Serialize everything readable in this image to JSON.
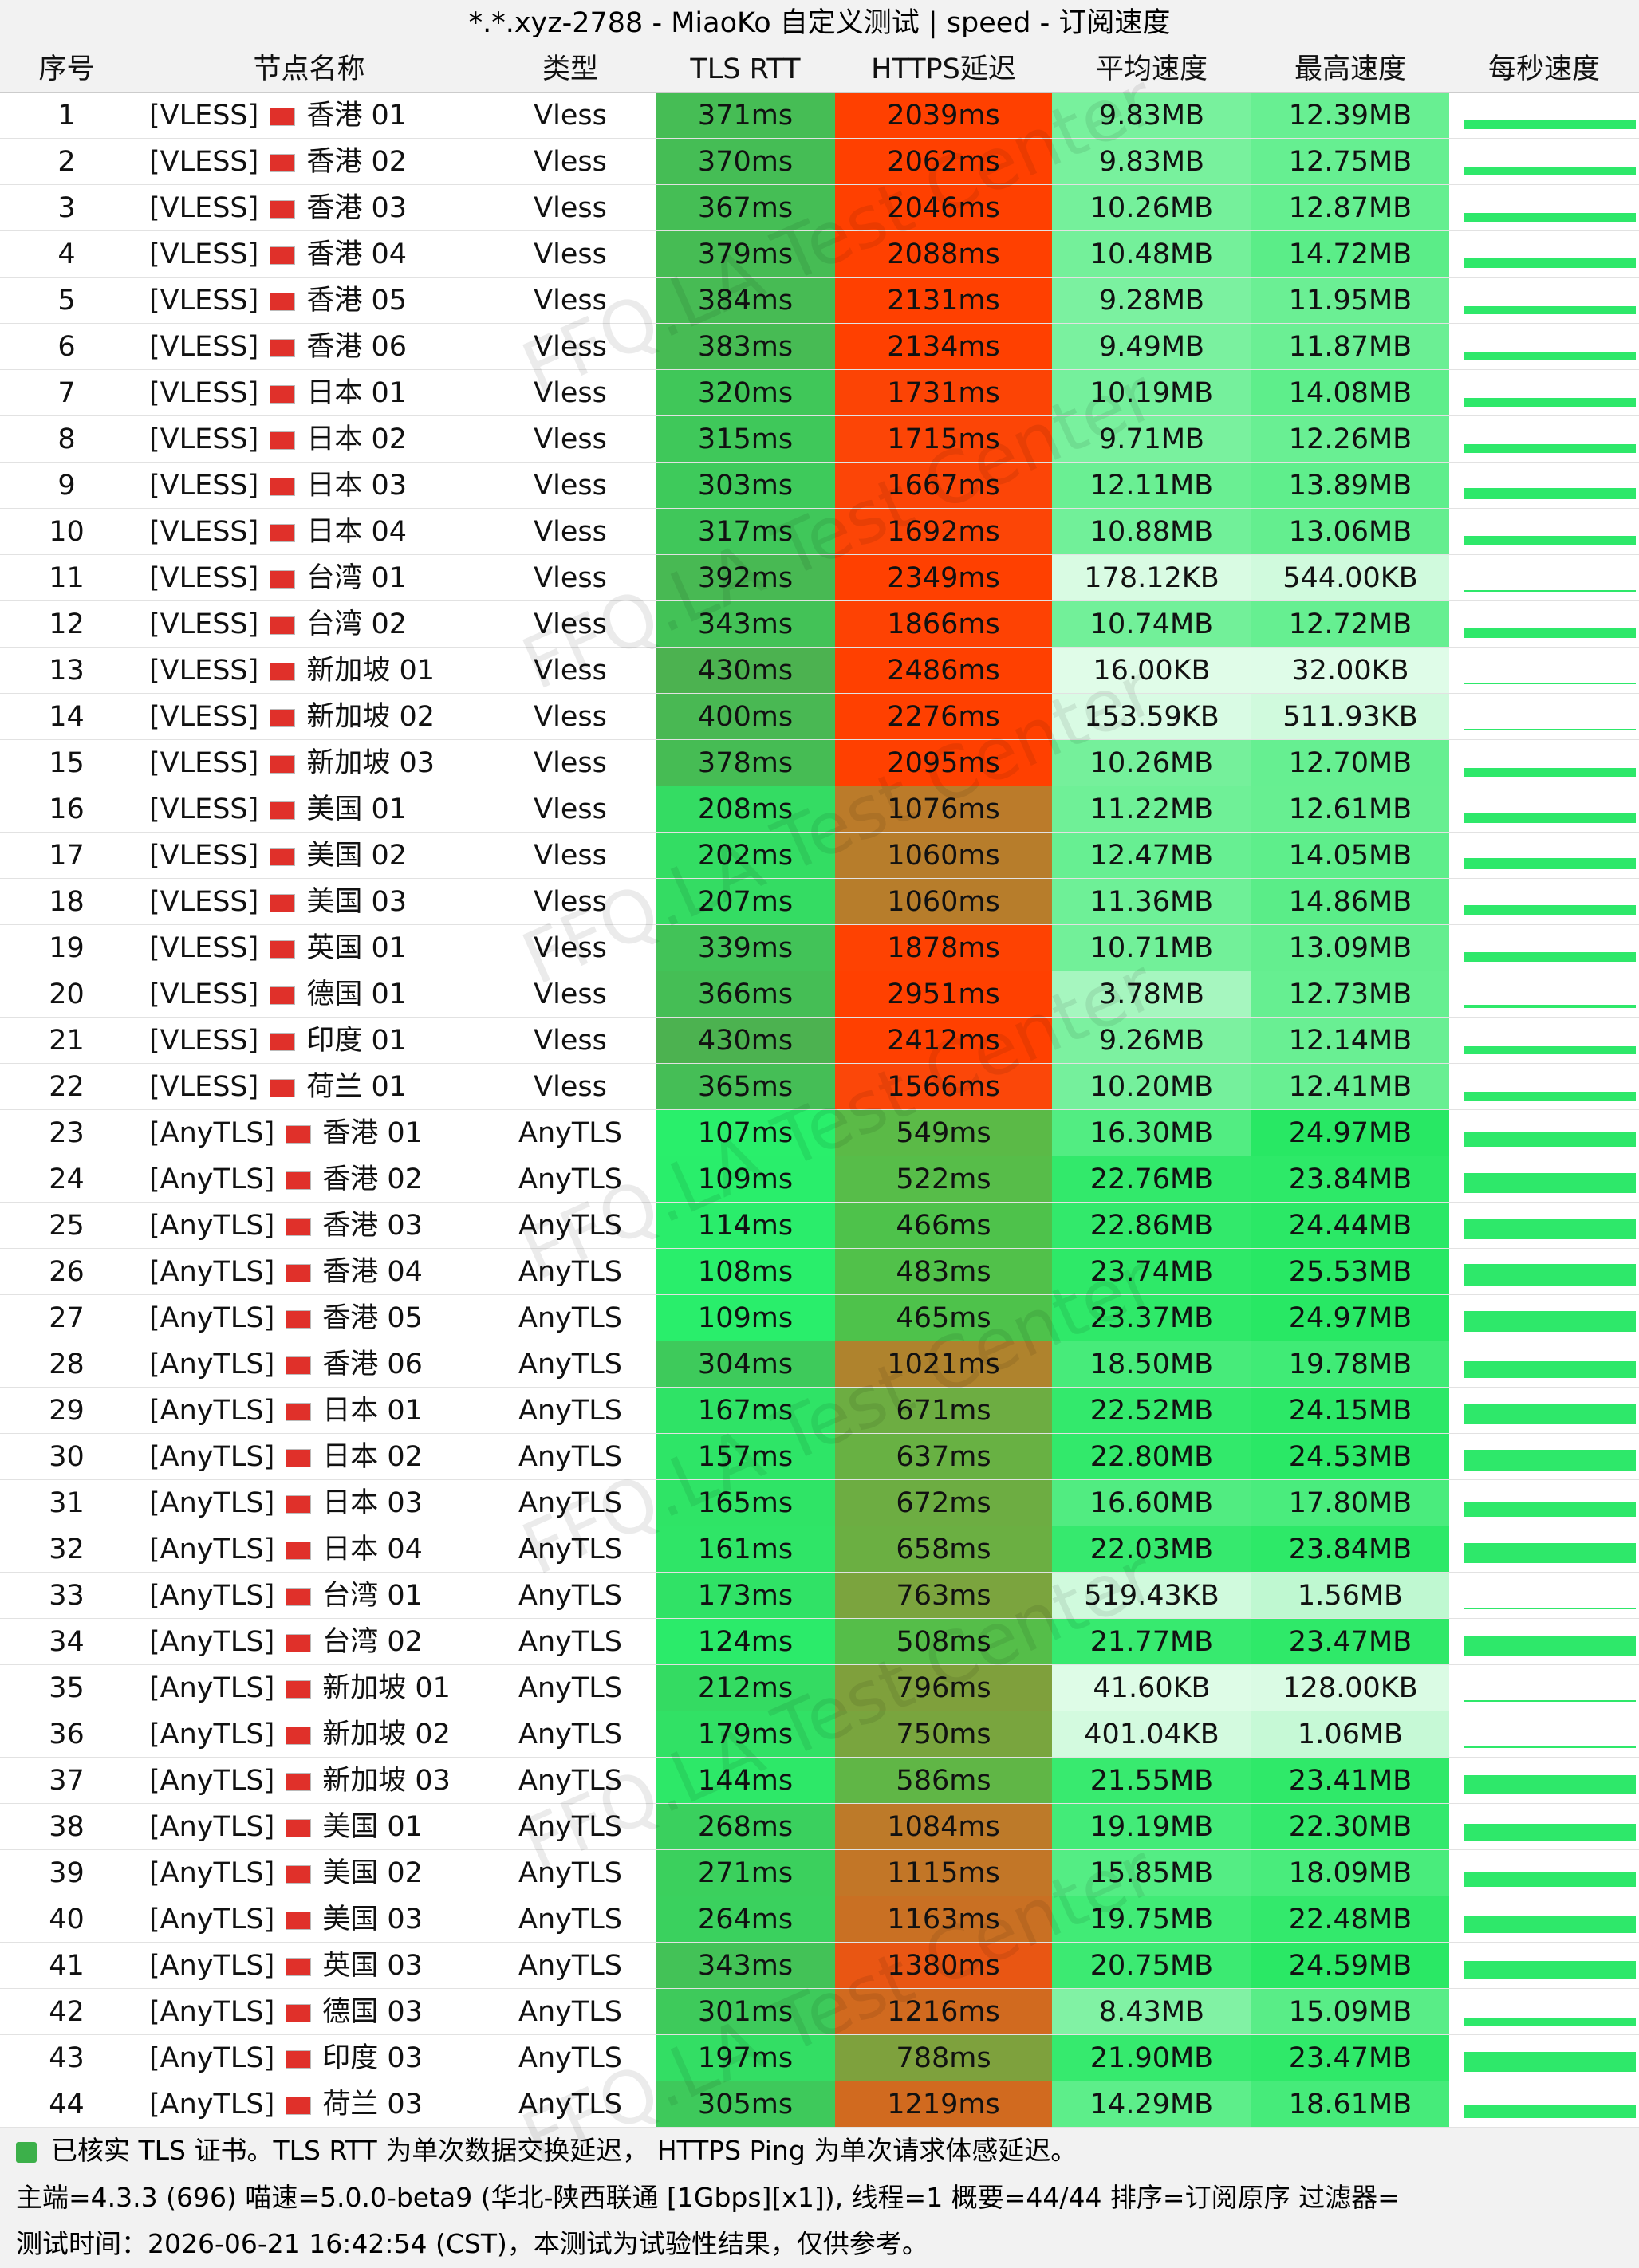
{
  "title": "*.*.xyz-2788 - MiaoKo 自定义测试 | speed - 订阅速度",
  "watermark": "FFQ.LA Test Center",
  "columns": [
    "序号",
    "节点名称",
    "类型",
    "TLS RTT",
    "HTTPS延迟",
    "平均速度",
    "最高速度",
    "每秒速度"
  ],
  "rows": [
    [
      1,
      "[VLESS]",
      "香港 01",
      "Vless",
      "371ms",
      "2039ms",
      "9.83MB",
      "12.39MB"
    ],
    [
      2,
      "[VLESS]",
      "香港 02",
      "Vless",
      "370ms",
      "2062ms",
      "9.83MB",
      "12.75MB"
    ],
    [
      3,
      "[VLESS]",
      "香港 03",
      "Vless",
      "367ms",
      "2046ms",
      "10.26MB",
      "12.87MB"
    ],
    [
      4,
      "[VLESS]",
      "香港 04",
      "Vless",
      "379ms",
      "2088ms",
      "10.48MB",
      "14.72MB"
    ],
    [
      5,
      "[VLESS]",
      "香港 05",
      "Vless",
      "384ms",
      "2131ms",
      "9.28MB",
      "11.95MB"
    ],
    [
      6,
      "[VLESS]",
      "香港 06",
      "Vless",
      "383ms",
      "2134ms",
      "9.49MB",
      "11.87MB"
    ],
    [
      7,
      "[VLESS]",
      "日本 01",
      "Vless",
      "320ms",
      "1731ms",
      "10.19MB",
      "14.08MB"
    ],
    [
      8,
      "[VLESS]",
      "日本 02",
      "Vless",
      "315ms",
      "1715ms",
      "9.71MB",
      "12.26MB"
    ],
    [
      9,
      "[VLESS]",
      "日本 03",
      "Vless",
      "303ms",
      "1667ms",
      "12.11MB",
      "13.89MB"
    ],
    [
      10,
      "[VLESS]",
      "日本 04",
      "Vless",
      "317ms",
      "1692ms",
      "10.88MB",
      "13.06MB"
    ],
    [
      11,
      "[VLESS]",
      "台湾 01",
      "Vless",
      "392ms",
      "2349ms",
      "178.12KB",
      "544.00KB"
    ],
    [
      12,
      "[VLESS]",
      "台湾 02",
      "Vless",
      "343ms",
      "1866ms",
      "10.74MB",
      "12.72MB"
    ],
    [
      13,
      "[VLESS]",
      "新加坡 01",
      "Vless",
      "430ms",
      "2486ms",
      "16.00KB",
      "32.00KB"
    ],
    [
      14,
      "[VLESS]",
      "新加坡 02",
      "Vless",
      "400ms",
      "2276ms",
      "153.59KB",
      "511.93KB"
    ],
    [
      15,
      "[VLESS]",
      "新加坡 03",
      "Vless",
      "378ms",
      "2095ms",
      "10.26MB",
      "12.70MB"
    ],
    [
      16,
      "[VLESS]",
      "美国 01",
      "Vless",
      "208ms",
      "1076ms",
      "11.22MB",
      "12.61MB"
    ],
    [
      17,
      "[VLESS]",
      "美国 02",
      "Vless",
      "202ms",
      "1060ms",
      "12.47MB",
      "14.05MB"
    ],
    [
      18,
      "[VLESS]",
      "美国 03",
      "Vless",
      "207ms",
      "1060ms",
      "11.36MB",
      "14.86MB"
    ],
    [
      19,
      "[VLESS]",
      "英国 01",
      "Vless",
      "339ms",
      "1878ms",
      "10.71MB",
      "13.09MB"
    ],
    [
      20,
      "[VLESS]",
      "德国 01",
      "Vless",
      "366ms",
      "2951ms",
      "3.78MB",
      "12.73MB"
    ],
    [
      21,
      "[VLESS]",
      "印度 01",
      "Vless",
      "430ms",
      "2412ms",
      "9.26MB",
      "12.14MB"
    ],
    [
      22,
      "[VLESS]",
      "荷兰 01",
      "Vless",
      "365ms",
      "1566ms",
      "10.20MB",
      "12.41MB"
    ],
    [
      23,
      "[AnyTLS]",
      "香港 01",
      "AnyTLS",
      "107ms",
      "549ms",
      "16.30MB",
      "24.97MB"
    ],
    [
      24,
      "[AnyTLS]",
      "香港 02",
      "AnyTLS",
      "109ms",
      "522ms",
      "22.76MB",
      "23.84MB"
    ],
    [
      25,
      "[AnyTLS]",
      "香港 03",
      "AnyTLS",
      "114ms",
      "466ms",
      "22.86MB",
      "24.44MB"
    ],
    [
      26,
      "[AnyTLS]",
      "香港 04",
      "AnyTLS",
      "108ms",
      "483ms",
      "23.74MB",
      "25.53MB"
    ],
    [
      27,
      "[AnyTLS]",
      "香港 05",
      "AnyTLS",
      "109ms",
      "465ms",
      "23.37MB",
      "24.97MB"
    ],
    [
      28,
      "[AnyTLS]",
      "香港 06",
      "AnyTLS",
      "304ms",
      "1021ms",
      "18.50MB",
      "19.78MB"
    ],
    [
      29,
      "[AnyTLS]",
      "日本 01",
      "AnyTLS",
      "167ms",
      "671ms",
      "22.52MB",
      "24.15MB"
    ],
    [
      30,
      "[AnyTLS]",
      "日本 02",
      "AnyTLS",
      "157ms",
      "637ms",
      "22.80MB",
      "24.53MB"
    ],
    [
      31,
      "[AnyTLS]",
      "日本 03",
      "AnyTLS",
      "165ms",
      "672ms",
      "16.60MB",
      "17.80MB"
    ],
    [
      32,
      "[AnyTLS]",
      "日本 04",
      "AnyTLS",
      "161ms",
      "658ms",
      "22.03MB",
      "23.84MB"
    ],
    [
      33,
      "[AnyTLS]",
      "台湾 01",
      "AnyTLS",
      "173ms",
      "763ms",
      "519.43KB",
      "1.56MB"
    ],
    [
      34,
      "[AnyTLS]",
      "台湾 02",
      "AnyTLS",
      "124ms",
      "508ms",
      "21.77MB",
      "23.47MB"
    ],
    [
      35,
      "[AnyTLS]",
      "新加坡 01",
      "AnyTLS",
      "212ms",
      "796ms",
      "41.60KB",
      "128.00KB"
    ],
    [
      36,
      "[AnyTLS]",
      "新加坡 02",
      "AnyTLS",
      "179ms",
      "750ms",
      "401.04KB",
      "1.06MB"
    ],
    [
      37,
      "[AnyTLS]",
      "新加坡 03",
      "AnyTLS",
      "144ms",
      "586ms",
      "21.55MB",
      "23.41MB"
    ],
    [
      38,
      "[AnyTLS]",
      "美国 01",
      "AnyTLS",
      "268ms",
      "1084ms",
      "19.19MB",
      "22.30MB"
    ],
    [
      39,
      "[AnyTLS]",
      "美国 02",
      "AnyTLS",
      "271ms",
      "1115ms",
      "15.85MB",
      "18.09MB"
    ],
    [
      40,
      "[AnyTLS]",
      "美国 03",
      "AnyTLS",
      "264ms",
      "1163ms",
      "19.75MB",
      "22.48MB"
    ],
    [
      41,
      "[AnyTLS]",
      "英国 03",
      "AnyTLS",
      "343ms",
      "1380ms",
      "20.75MB",
      "24.59MB"
    ],
    [
      42,
      "[AnyTLS]",
      "德国 03",
      "AnyTLS",
      "301ms",
      "1216ms",
      "8.43MB",
      "15.09MB"
    ],
    [
      43,
      "[AnyTLS]",
      "印度 03",
      "AnyTLS",
      "197ms",
      "788ms",
      "21.90MB",
      "23.47MB"
    ],
    [
      44,
      "[AnyTLS]",
      "荷兰 03",
      "AnyTLS",
      "305ms",
      "1219ms",
      "14.29MB",
      "18.61MB"
    ]
  ],
  "footer": [
    "已核实 TLS 证书。TLS RTT 为单次数据交换延迟， HTTPS Ping 为单次请求体感延迟。",
    "主端=4.3.3 (696) 喵速=5.0.0-beta9 (华北-陕西联通 [1Gbps][x1]), 线程=1 概要=44/44 排序=订阅原序 过滤器=",
    "测试时间：2026-06-21 16:42:54 (CST)，本测试为试验性结果，仅供参考。"
  ]
}
